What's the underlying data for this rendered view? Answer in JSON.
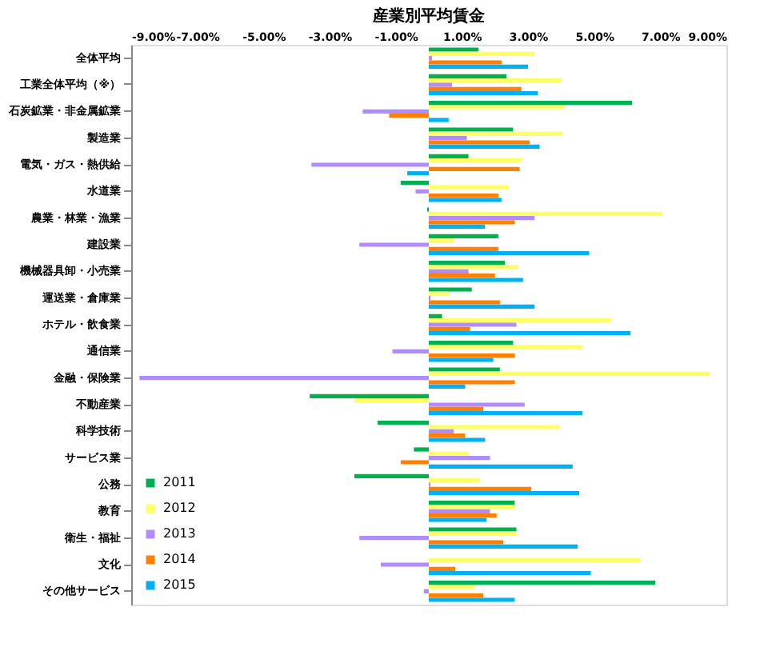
{
  "chart_data": {
    "type": "bar",
    "orientation": "horizontal",
    "title": "産業別平均賃金",
    "categories": [
      "全体平均",
      "工業全体平均（※）",
      "石炭鉱業・非金属鉱業",
      "製造業",
      "電気・ガス・熱供給",
      "水道業",
      "農業・林業・漁業",
      "建設業",
      "機械器具卸・小売業",
      "運送業・倉庫業",
      "ホテル・飲食業",
      "通信業",
      "金融・保険業",
      "不動産業",
      "科学技術",
      "サービス業",
      "公務",
      "教育",
      "衛生・福祉",
      "文化",
      "その他サービス"
    ],
    "series": [
      {
        "name": "2011",
        "color": "#00b050",
        "values": [
          1.5,
          2.35,
          6.15,
          2.55,
          1.2,
          -0.85,
          -0.05,
          2.1,
          2.3,
          1.3,
          0.4,
          2.55,
          2.15,
          -3.6,
          -1.55,
          -0.45,
          -2.25,
          2.6,
          2.65,
          0,
          6.85
        ]
      },
      {
        "name": "2012",
        "color": "#ffff66",
        "values": [
          3.2,
          4.0,
          4.1,
          4.05,
          2.8,
          2.4,
          7.05,
          0.75,
          2.7,
          0.6,
          5.5,
          4.65,
          8.5,
          -2.25,
          3.95,
          1.2,
          1.55,
          2.6,
          2.65,
          6.4,
          1.4
        ]
      },
      {
        "name": "2013",
        "color": "#b18cff",
        "values": [
          0.1,
          0.7,
          -2.0,
          1.15,
          -3.55,
          -0.4,
          3.2,
          -2.1,
          1.2,
          0.05,
          2.65,
          -1.1,
          -8.75,
          2.9,
          0.75,
          1.85,
          0.05,
          1.85,
          -2.1,
          -1.45,
          -0.15
        ]
      },
      {
        "name": "2014",
        "color": "#ff7f00",
        "values": [
          2.2,
          2.8,
          -1.2,
          3.05,
          2.75,
          2.1,
          2.6,
          2.1,
          2.0,
          2.15,
          1.25,
          2.6,
          2.6,
          1.65,
          1.1,
          -0.85,
          3.1,
          2.05,
          2.25,
          0.8,
          1.65
        ]
      },
      {
        "name": "2015",
        "color": "#00b0f0",
        "values": [
          3.0,
          3.3,
          0.6,
          3.35,
          -0.65,
          2.2,
          1.7,
          4.85,
          2.85,
          3.2,
          6.1,
          1.95,
          1.1,
          4.65,
          1.7,
          4.35,
          4.55,
          1.75,
          4.5,
          4.9,
          2.6
        ]
      }
    ],
    "xlim": [
      -9,
      9
    ],
    "xticks": [
      {
        "value": -9,
        "label": "-9.00%"
      },
      {
        "value": -7,
        "label": "-7.00%"
      },
      {
        "value": -5,
        "label": "-5.00%"
      },
      {
        "value": -3,
        "label": "-3.00%"
      },
      {
        "value": -1,
        "label": "-1.00%"
      },
      {
        "value": 1,
        "label": "1.00%"
      },
      {
        "value": 3,
        "label": "3.00%"
      },
      {
        "value": 5,
        "label": "5.00%"
      },
      {
        "value": 7,
        "label": "7.00%"
      },
      {
        "value": 9,
        "label": "9.00%"
      }
    ],
    "legend": "bottom left"
  }
}
